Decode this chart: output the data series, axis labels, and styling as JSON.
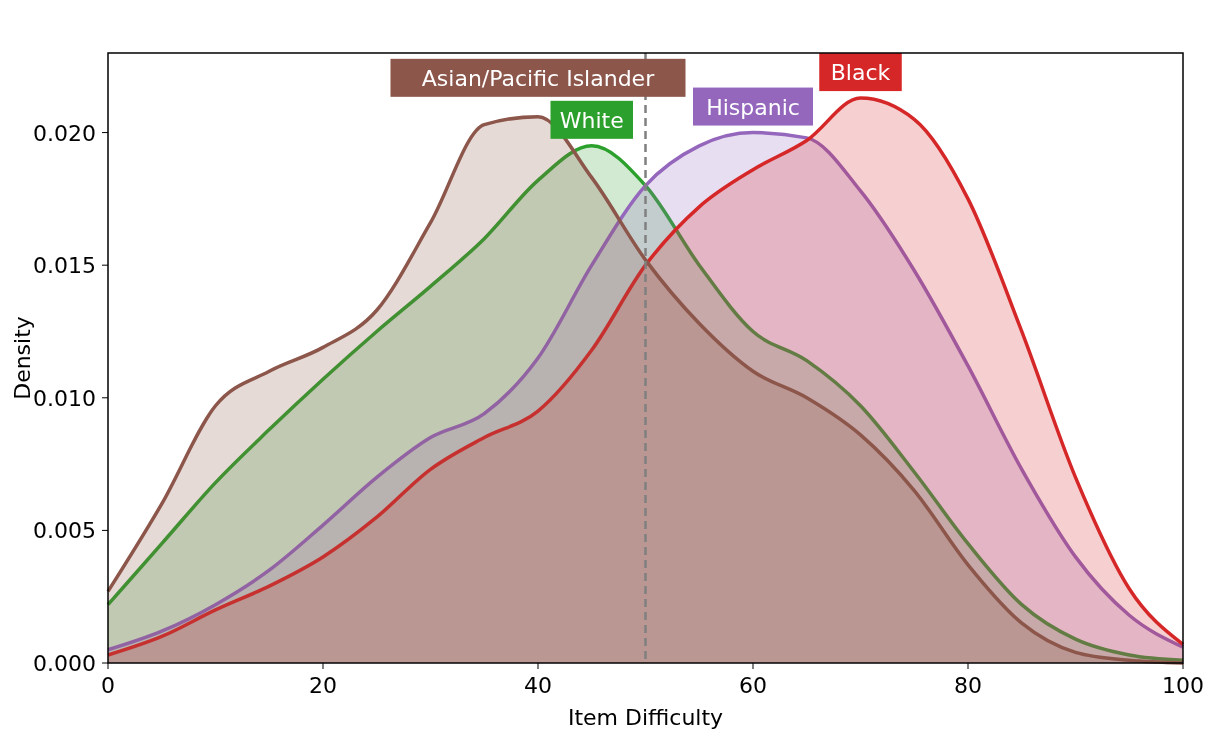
{
  "chart_data": {
    "type": "area",
    "xlabel": "Item Difficulty",
    "ylabel": "Density",
    "x": [
      0,
      5,
      10,
      15,
      20,
      25,
      30,
      35,
      40,
      45,
      50,
      55,
      60,
      65,
      70,
      75,
      80,
      85,
      90,
      95,
      100
    ],
    "xlim": [
      0,
      100
    ],
    "xticks": [
      0,
      20,
      40,
      60,
      80,
      100
    ],
    "ylim": [
      0,
      0.023
    ],
    "yticks": [
      {
        "value": 0,
        "label": "0.000"
      },
      {
        "value": 0.005,
        "label": "0.005"
      },
      {
        "value": 0.01,
        "label": "0.010"
      },
      {
        "value": 0.015,
        "label": "0.015"
      },
      {
        "value": 0.02,
        "label": "0.020"
      }
    ],
    "grid": false,
    "ref_lines": [
      {
        "axis": "x",
        "value": 50,
        "color": "#808080",
        "line_style": "dashed"
      }
    ],
    "series": [
      {
        "name": "White",
        "color": "#2ca02c",
        "values": [
          0.0022,
          0.0045,
          0.0068,
          0.0088,
          0.0107,
          0.0125,
          0.0142,
          0.016,
          0.0182,
          0.0195,
          0.018,
          0.015,
          0.0125,
          0.0114,
          0.0097,
          0.0072,
          0.0045,
          0.0022,
          0.0009,
          0.0003,
          0.0001
        ]
      },
      {
        "name": "Hispanic",
        "color": "#9467bd",
        "values": [
          0.0005,
          0.0012,
          0.0022,
          0.0035,
          0.0052,
          0.007,
          0.0085,
          0.0094,
          0.0115,
          0.015,
          0.018,
          0.0195,
          0.02,
          0.0198,
          0.0178,
          0.0148,
          0.0112,
          0.0073,
          0.004,
          0.0018,
          0.0006
        ]
      },
      {
        "name": "Black",
        "color": "#d62728",
        "values": [
          0.0003,
          0.001,
          0.002,
          0.0029,
          0.004,
          0.0055,
          0.0073,
          0.0085,
          0.0095,
          0.0118,
          0.015,
          0.0172,
          0.0186,
          0.0197,
          0.0213,
          0.0205,
          0.0175,
          0.0125,
          0.007,
          0.0028,
          0.0007
        ]
      },
      {
        "name": "Asian/Pacific Islander",
        "color": "#8c564b",
        "values": [
          0.0027,
          0.006,
          0.0097,
          0.011,
          0.0119,
          0.0133,
          0.0166,
          0.0203,
          0.0206,
          0.0183,
          0.0152,
          0.0128,
          0.011,
          0.01,
          0.0086,
          0.0065,
          0.0037,
          0.0015,
          0.0004,
          0.0001,
          0
        ]
      }
    ]
  }
}
